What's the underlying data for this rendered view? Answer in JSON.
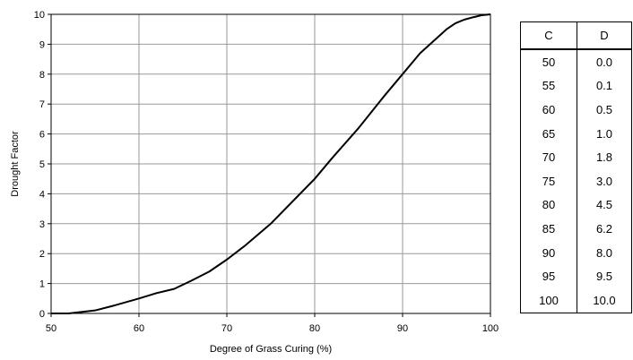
{
  "chart_data": {
    "type": "line",
    "x_label": "Degree of Grass Curing (%)",
    "y_label": "Drought Factor",
    "x": [
      50,
      52,
      55,
      57,
      60,
      62,
      64,
      66,
      68,
      70,
      72,
      75,
      78,
      80,
      82,
      85,
      88,
      90,
      92,
      95,
      96,
      97,
      98,
      99,
      100
    ],
    "values": [
      0,
      0,
      0.1,
      0.25,
      0.5,
      0.68,
      0.82,
      1.1,
      1.4,
      1.8,
      2.25,
      3.0,
      3.9,
      4.5,
      5.2,
      6.2,
      7.3,
      8.0,
      8.7,
      9.5,
      9.7,
      9.82,
      9.9,
      9.97,
      10.0
    ],
    "color": "#000000",
    "xlim": [
      50,
      100
    ],
    "xticks": [
      50,
      60,
      70,
      80,
      90,
      100
    ],
    "ylim": [
      0,
      10
    ],
    "yticks": [
      0,
      1,
      2,
      3,
      4,
      5,
      6,
      7,
      8,
      9,
      10
    ],
    "grid": true
  },
  "table": {
    "headers": [
      "C",
      "D"
    ],
    "rows": [
      [
        "50",
        "0.0"
      ],
      [
        "55",
        "0.1"
      ],
      [
        "60",
        "0.5"
      ],
      [
        "65",
        "1.0"
      ],
      [
        "70",
        "1.8"
      ],
      [
        "75",
        "3.0"
      ],
      [
        "80",
        "4.5"
      ],
      [
        "85",
        "6.2"
      ],
      [
        "90",
        "8.0"
      ],
      [
        "95",
        "9.5"
      ],
      [
        "100",
        "10.0"
      ]
    ]
  }
}
